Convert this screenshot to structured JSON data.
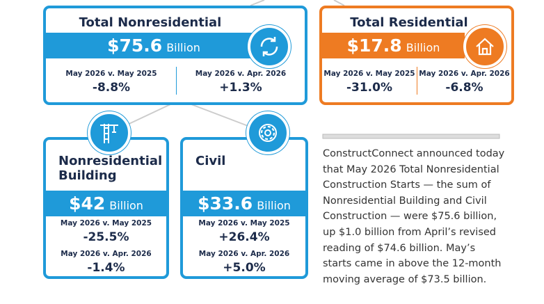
{
  "cards": [
    {
      "title": "Total Nonresidential",
      "amount": "$75.6",
      "unit": "Billion",
      "comparisons": [
        {
          "label": "May 2026 v. May 2025",
          "value": "-8.8%"
        },
        {
          "label": "May 2026 v. Apr. 2026",
          "value": "+1.3%"
        }
      ]
    },
    {
      "title": "Total Residential",
      "amount": "$17.8",
      "unit": "Billion",
      "comparisons": [
        {
          "label": "May 2026 v. May 2025",
          "value": "-31.0%"
        },
        {
          "label": "May 2026 v. Apr. 2026",
          "value": "-6.8%"
        }
      ]
    },
    {
      "title": "Nonresidential Building",
      "amount": "$42",
      "unit": "Billion",
      "comparisons": [
        {
          "label": "May 2026 v. May 2025",
          "value": "-25.5%"
        },
        {
          "label": "May 2026 v. Apr. 2026",
          "value": "-1.4%"
        }
      ]
    },
    {
      "title": "Civil",
      "amount": "$33.6",
      "unit": "Billion",
      "comparisons": [
        {
          "label": "May 2026 v. May 2025",
          "value": "+26.4%"
        },
        {
          "label": "May 2026 v. Apr. 2026",
          "value": "+5.0%"
        }
      ]
    }
  ],
  "paragraph": "ConstructConnect announced today that May 2026 Total Nonresidential Construction Starts — the sum of Nonresidential Building and Civil Construction — were $75.6 billion, up $1.0 billion from April’s revised reading of $74.6 billion. May’s starts came in above the 12-month moving average of $73.5 billion."
}
